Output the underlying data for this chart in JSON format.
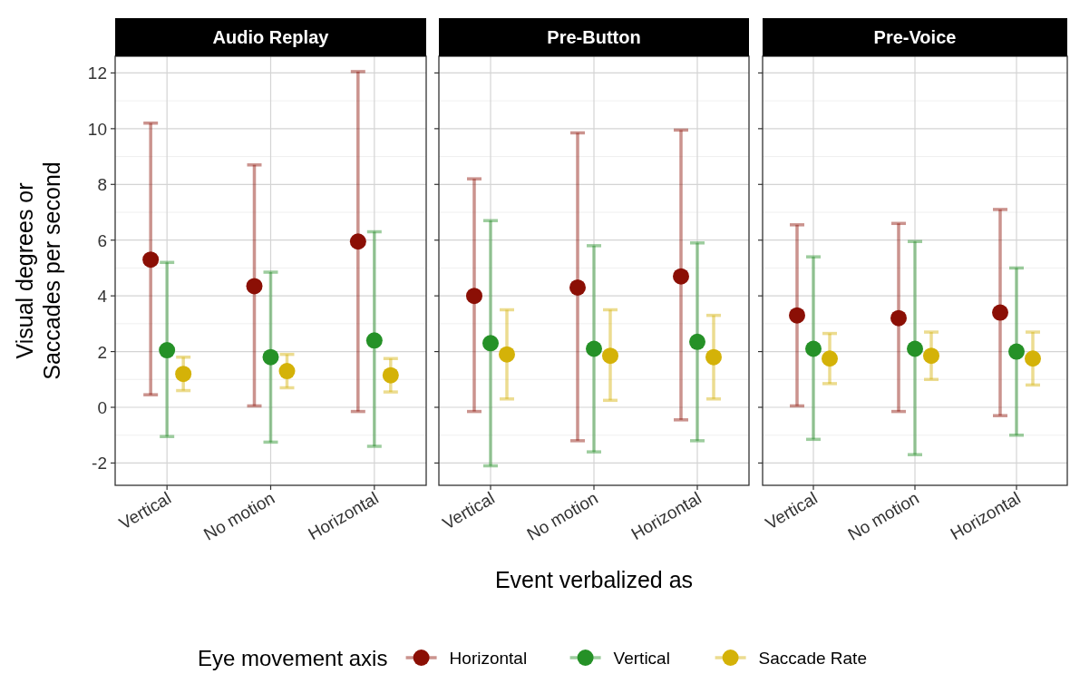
{
  "chart_data": [
    {
      "type": "scatter",
      "title": "Audio Replay",
      "ylabel": "Visual degrees or\nSaccades per second",
      "categories": [
        "Vertical",
        "No motion",
        "Horizontal"
      ],
      "ylim": [
        -2.8,
        12.6
      ],
      "yticks": [
        -2,
        0,
        2,
        4,
        6,
        8,
        10,
        12
      ],
      "grid": true,
      "marker": "circle",
      "legend": "bottom",
      "legend_title": "Eye movement axis",
      "series": [
        {
          "name": "Horizontal",
          "color": "#8b0f05",
          "values": [
            5.3,
            4.35,
            5.95
          ],
          "errors": [
            [
              0.45,
              10.2
            ],
            [
              0.05,
              8.7
            ],
            [
              -0.15,
              12.05
            ]
          ]
        },
        {
          "name": "Vertical",
          "color": "#259127",
          "values": [
            2.05,
            1.8,
            2.4
          ],
          "errors": [
            [
              -1.05,
              5.2
            ],
            [
              -1.25,
              4.85
            ],
            [
              -1.4,
              6.3
            ]
          ]
        },
        {
          "name": "Saccade Rate",
          "color": "#d4b208",
          "values": [
            1.2,
            1.3,
            1.15
          ],
          "errors": [
            [
              0.6,
              1.8
            ],
            [
              0.7,
              1.9
            ],
            [
              0.55,
              1.75
            ]
          ]
        }
      ]
    },
    {
      "type": "scatter",
      "title": "Pre-Button",
      "xlabel": "Event verbalized as",
      "categories": [
        "Vertical",
        "No motion",
        "Horizontal"
      ],
      "ylim": [
        -2.8,
        12.6
      ],
      "yticks": [
        -2,
        0,
        2,
        4,
        6,
        8,
        10,
        12
      ],
      "grid": true,
      "marker": "circle",
      "tick_labels": "x",
      "series": [
        {
          "color": "#8b0f05",
          "values": [
            4.0,
            4.3,
            4.7
          ],
          "errors": [
            [
              -0.15,
              8.2
            ],
            [
              -1.2,
              9.85
            ],
            [
              -0.45,
              9.95
            ]
          ]
        },
        {
          "color": "#259127",
          "values": [
            2.3,
            2.1,
            2.35
          ],
          "errors": [
            [
              -2.1,
              6.7
            ],
            [
              -1.6,
              5.8
            ],
            [
              -1.2,
              5.9
            ]
          ]
        },
        {
          "color": "#d4b208",
          "values": [
            1.9,
            1.85,
            1.8
          ],
          "errors": [
            [
              0.3,
              3.5
            ],
            [
              0.25,
              3.5
            ],
            [
              0.3,
              3.3
            ]
          ]
        }
      ]
    },
    {
      "type": "scatter",
      "title": "Pre-Voice",
      "categories": [
        "Vertical",
        "No motion",
        "Horizontal"
      ],
      "ylim": [
        -2.8,
        12.6
      ],
      "yticks": [
        -2,
        0,
        2,
        4,
        6,
        8,
        10,
        12
      ],
      "grid": true,
      "marker": "circle",
      "tick_labels": "x",
      "series": [
        {
          "color": "#8b0f05",
          "values": [
            3.3,
            3.2,
            3.4
          ],
          "errors": [
            [
              0.05,
              6.55
            ],
            [
              -0.15,
              6.6
            ],
            [
              -0.3,
              7.1
            ]
          ]
        },
        {
          "color": "#259127",
          "values": [
            2.1,
            2.1,
            2.0
          ],
          "errors": [
            [
              -1.15,
              5.4
            ],
            [
              -1.7,
              5.95
            ],
            [
              -1.0,
              5.0
            ]
          ]
        },
        {
          "color": "#d4b208",
          "values": [
            1.75,
            1.85,
            1.75
          ],
          "errors": [
            [
              0.85,
              2.65
            ],
            [
              1.0,
              2.7
            ],
            [
              0.8,
              2.7
            ]
          ]
        }
      ]
    }
  ]
}
